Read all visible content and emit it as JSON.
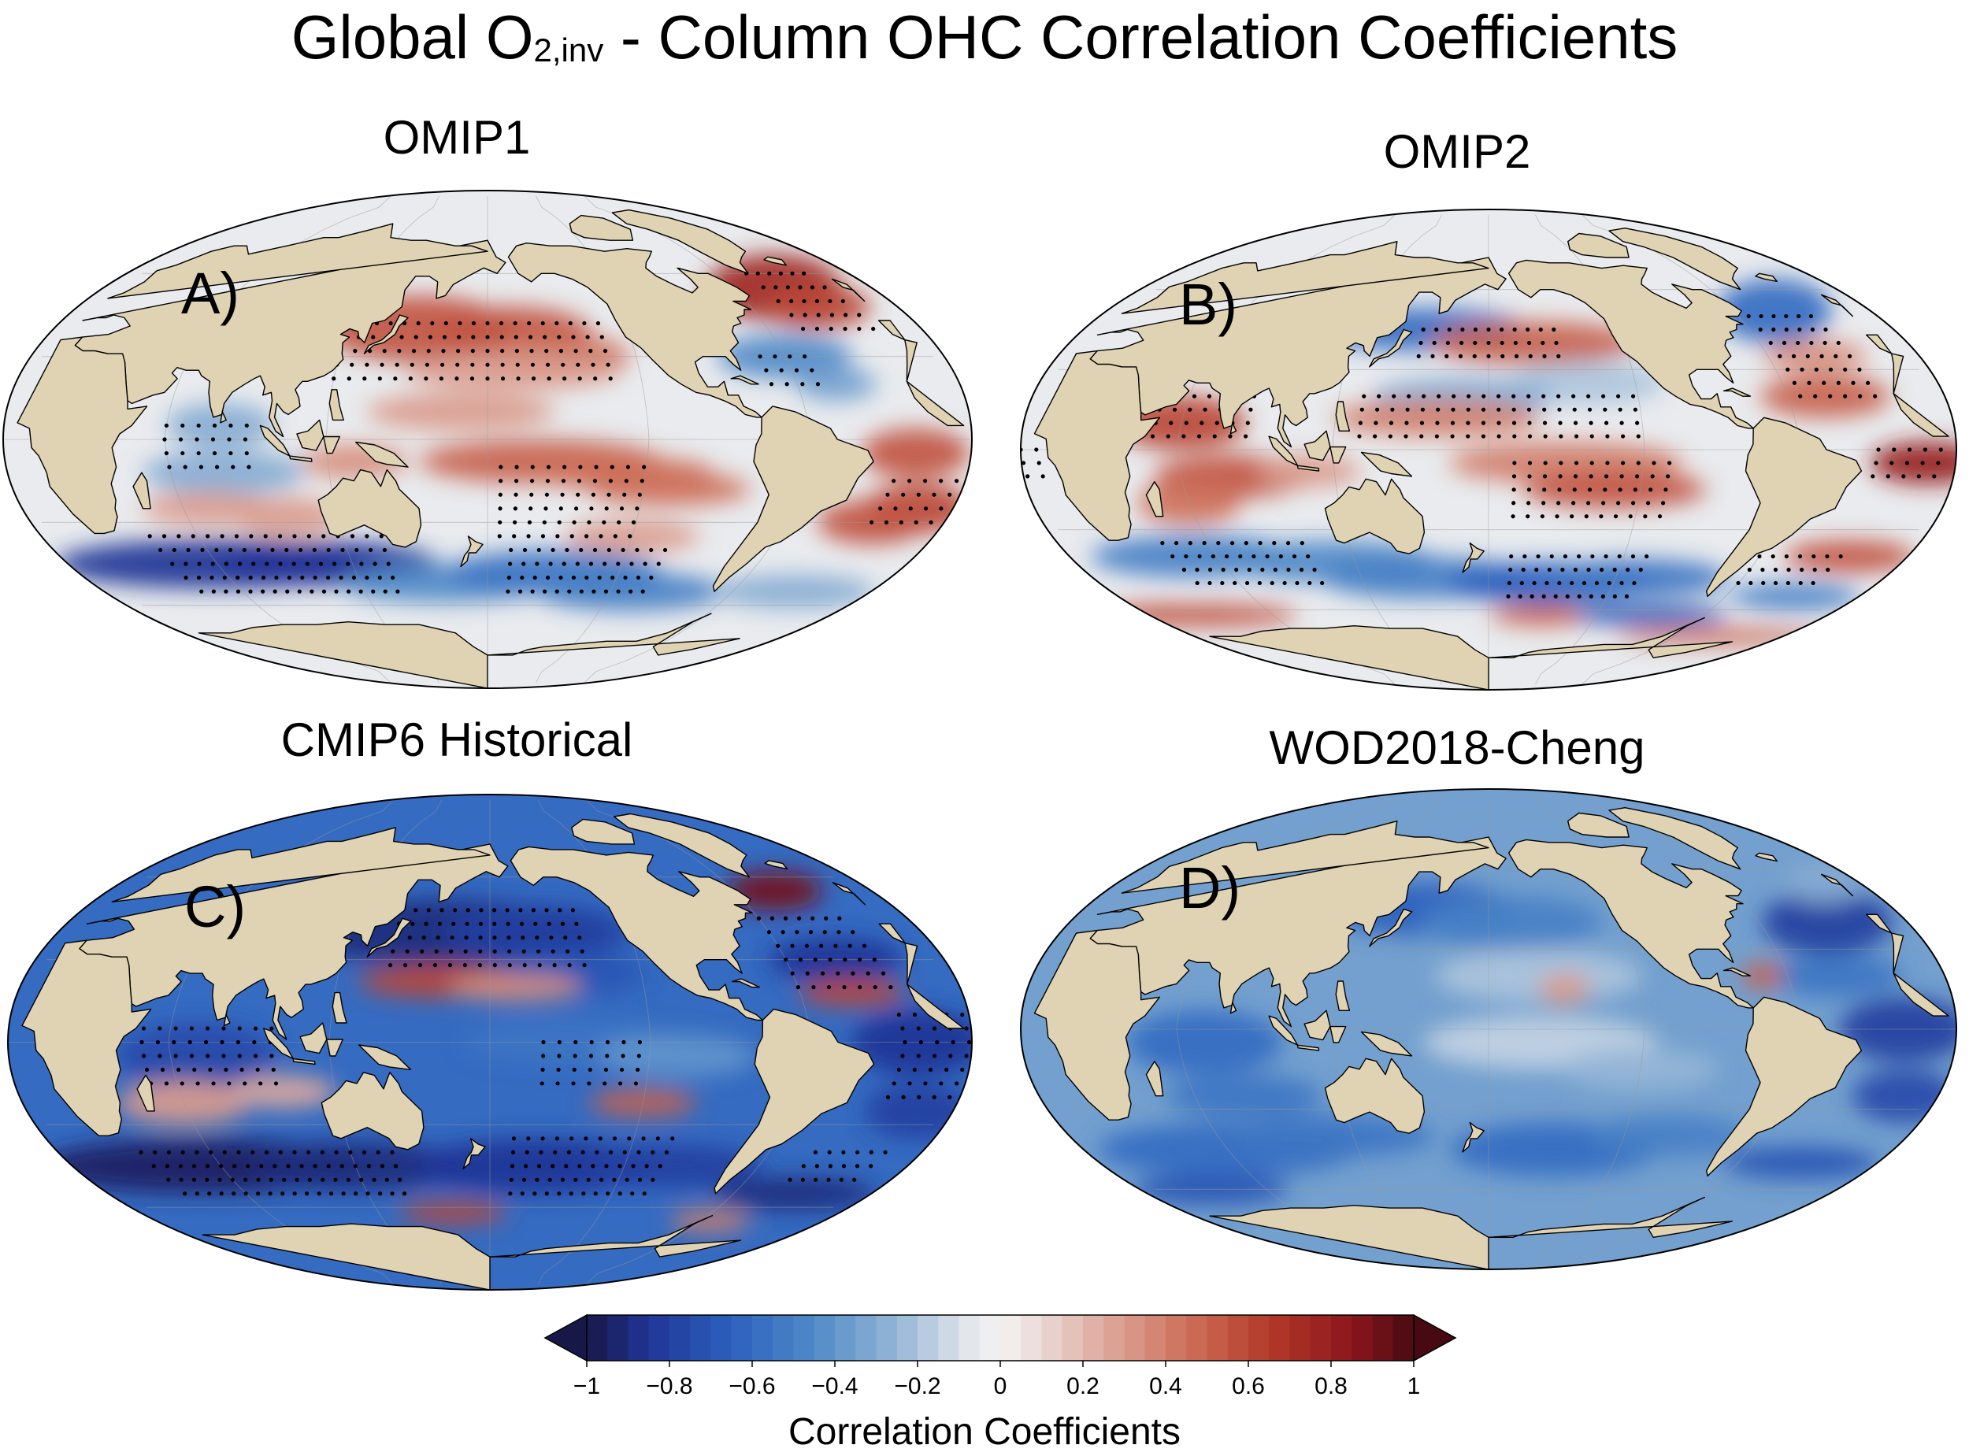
{
  "figure": {
    "title_main": "Global O",
    "title_sub": "2,inv",
    "title_rest": " - Column OHC Correlation Coefficients"
  },
  "colors": {
    "land": "#dfd3b3",
    "ocean_neutral": "#f2eeee",
    "strong_negative": "#1c2f86",
    "negative": "#3e6fbd",
    "strong_positive": "#8e1c1c",
    "positive": "#c8523e",
    "coastline": "#000000"
  },
  "panels": [
    {
      "id": "A",
      "title": "OMIP1",
      "label": "A)",
      "stippled": true
    },
    {
      "id": "B",
      "title": "OMIP2",
      "label": "B)",
      "stippled": true
    },
    {
      "id": "C",
      "title": "CMIP6 Historical",
      "label": "C)",
      "stippled": true
    },
    {
      "id": "D",
      "title": "WOD2018-Cheng",
      "label": "D)",
      "stippled": false
    }
  ],
  "colorbar": {
    "label": "Correlation Coefficients",
    "range": [
      -1,
      1
    ],
    "ticks": [
      "−1",
      "−0.8",
      "−0.6",
      "−0.4",
      "−0.2",
      "0",
      "0.2",
      "0.4",
      "0.6",
      "0.8",
      "1"
    ],
    "extend": "both",
    "colormap": "blue-white-red (diverging)"
  }
}
